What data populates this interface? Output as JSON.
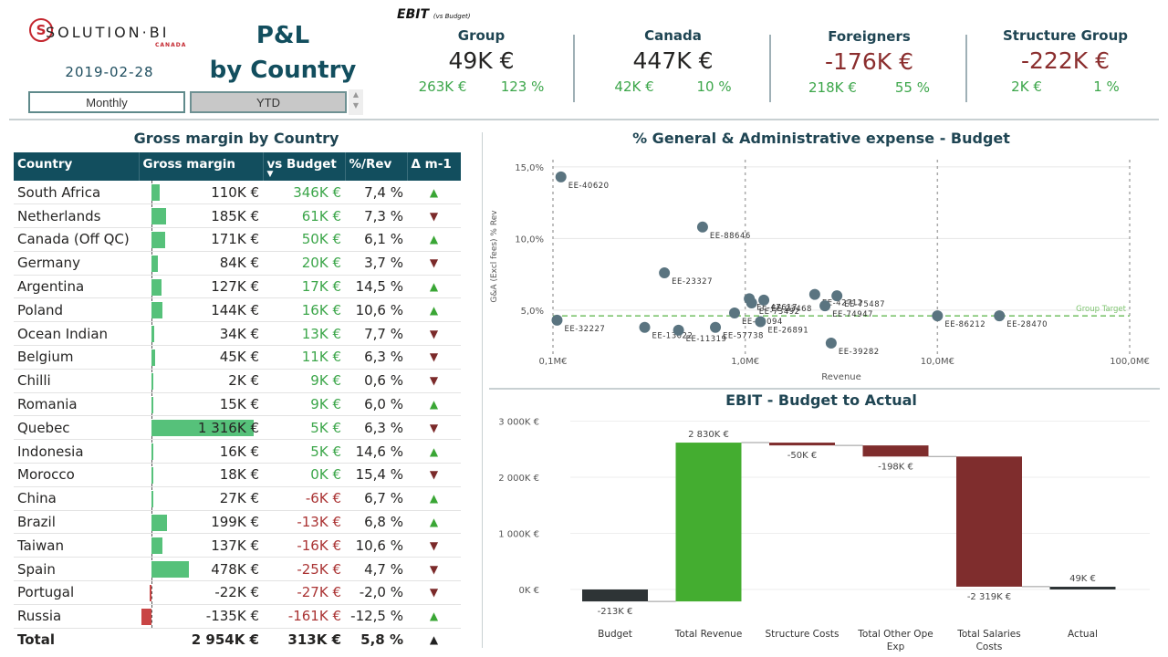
{
  "header": {
    "logo": {
      "brand": "SOLUTION·BI",
      "sub": "CANADA"
    },
    "date": "2019-02-28",
    "title_line1": "P&L",
    "title_line2": "by Country",
    "toggles": [
      {
        "label": "Monthly",
        "selected": false
      },
      {
        "label": "YTD",
        "selected": true
      }
    ]
  },
  "kpis": {
    "title": "EBIT",
    "subtitle": "(vs Budget)",
    "items": [
      {
        "name": "Group",
        "value": "49K €",
        "delta": "263K €",
        "pct": "123 %",
        "negative": false
      },
      {
        "name": "Canada",
        "value": "447K €",
        "delta": "42K €",
        "pct": "10 %",
        "negative": false
      },
      {
        "name": "Foreigners",
        "value": "-176K €",
        "delta": "218K €",
        "pct": "55 %",
        "negative": true
      },
      {
        "name": "Structure Group",
        "value": "-222K €",
        "delta": "2K €",
        "pct": "1 %",
        "negative": true
      }
    ]
  },
  "gross_margin": {
    "title": "Gross margin by Country",
    "columns": [
      "Country",
      "Gross margin",
      "vs Budget",
      "%/Rev",
      "Δ m-1"
    ],
    "sort_indicator": "▼",
    "colors": {
      "bar_pos": "#56c17a",
      "bar_neg": "#c94545",
      "pos": "#3ca64a",
      "neg": "#a33333"
    },
    "rows": [
      {
        "country": "South Africa",
        "gm": "110K €",
        "gm_value": 110,
        "vs_budget": "346K €",
        "vs_neg": false,
        "pct_rev": "7,4 %",
        "trend": "up"
      },
      {
        "country": "Netherlands",
        "gm": "185K €",
        "gm_value": 185,
        "vs_budget": "61K €",
        "vs_neg": false,
        "pct_rev": "7,3 %",
        "trend": "down"
      },
      {
        "country": "Canada (Off QC)",
        "gm": "171K €",
        "gm_value": 171,
        "vs_budget": "50K €",
        "vs_neg": false,
        "pct_rev": "6,1 %",
        "trend": "up"
      },
      {
        "country": "Germany",
        "gm": "84K €",
        "gm_value": 84,
        "vs_budget": "20K €",
        "vs_neg": false,
        "pct_rev": "3,7 %",
        "trend": "down"
      },
      {
        "country": "Argentina",
        "gm": "127K €",
        "gm_value": 127,
        "vs_budget": "17K €",
        "vs_neg": false,
        "pct_rev": "14,5 %",
        "trend": "up"
      },
      {
        "country": "Poland",
        "gm": "144K €",
        "gm_value": 144,
        "vs_budget": "16K €",
        "vs_neg": false,
        "pct_rev": "10,6 %",
        "trend": "up"
      },
      {
        "country": "Ocean Indian",
        "gm": "34K €",
        "gm_value": 34,
        "vs_budget": "13K €",
        "vs_neg": false,
        "pct_rev": "7,7 %",
        "trend": "down"
      },
      {
        "country": "Belgium",
        "gm": "45K €",
        "gm_value": 45,
        "vs_budget": "11K €",
        "vs_neg": false,
        "pct_rev": "6,3 %",
        "trend": "down"
      },
      {
        "country": "Chilli",
        "gm": "2K €",
        "gm_value": 2,
        "vs_budget": "9K €",
        "vs_neg": false,
        "pct_rev": "0,6 %",
        "trend": "down"
      },
      {
        "country": "Romania",
        "gm": "15K €",
        "gm_value": 15,
        "vs_budget": "9K €",
        "vs_neg": false,
        "pct_rev": "6,0 %",
        "trend": "up"
      },
      {
        "country": "Quebec",
        "gm": "1 316K €",
        "gm_value": 1316,
        "vs_budget": "5K €",
        "vs_neg": false,
        "pct_rev": "6,3 %",
        "trend": "down"
      },
      {
        "country": "Indonesia",
        "gm": "16K €",
        "gm_value": 16,
        "vs_budget": "5K €",
        "vs_neg": false,
        "pct_rev": "14,6 %",
        "trend": "up"
      },
      {
        "country": "Morocco",
        "gm": "18K €",
        "gm_value": 18,
        "vs_budget": "0K €",
        "vs_neg": false,
        "pct_rev": "15,4 %",
        "trend": "down"
      },
      {
        "country": "China",
        "gm": "27K €",
        "gm_value": 27,
        "vs_budget": "-6K €",
        "vs_neg": true,
        "pct_rev": "6,7 %",
        "trend": "up"
      },
      {
        "country": "Brazil",
        "gm": "199K €",
        "gm_value": 199,
        "vs_budget": "-13K €",
        "vs_neg": true,
        "pct_rev": "6,8 %",
        "trend": "up"
      },
      {
        "country": "Taiwan",
        "gm": "137K €",
        "gm_value": 137,
        "vs_budget": "-16K €",
        "vs_neg": true,
        "pct_rev": "10,6 %",
        "trend": "down"
      },
      {
        "country": "Spain",
        "gm": "478K €",
        "gm_value": 478,
        "vs_budget": "-25K €",
        "vs_neg": true,
        "pct_rev": "4,7 %",
        "trend": "down"
      },
      {
        "country": "Portugal",
        "gm": "-22K €",
        "gm_value": -22,
        "vs_budget": "-27K €",
        "vs_neg": true,
        "pct_rev": "-2,0 %",
        "trend": "down"
      },
      {
        "country": "Russia",
        "gm": "-135K €",
        "gm_value": -135,
        "vs_budget": "-161K €",
        "vs_neg": true,
        "pct_rev": "-12,5 %",
        "trend": "up"
      }
    ],
    "total": {
      "label": "Total",
      "gm": "2 954K €",
      "vs_budget": "313K €",
      "pct_rev": "5,8 %",
      "trend": "up"
    }
  },
  "chart_data": [
    {
      "type": "scatter",
      "title": "% General & Administrative expense - Budget",
      "xlabel": "Revenue",
      "ylabel": "G&A (Excl fees) % Rev",
      "xscale": "log",
      "xlim": [
        0.1,
        100
      ],
      "ylim": [
        2,
        15.5
      ],
      "xticks": [
        {
          "v": 0.1,
          "label": "0,1M€"
        },
        {
          "v": 1,
          "label": "1,0M€"
        },
        {
          "v": 10,
          "label": "10,0M€"
        },
        {
          "v": 100,
          "label": "100,0M€"
        }
      ],
      "yticks": [
        {
          "v": 5,
          "label": "5,0%"
        },
        {
          "v": 10,
          "label": "10,0%"
        },
        {
          "v": 15,
          "label": "15,0%"
        }
      ],
      "reference_line": {
        "label": "Group Target",
        "y": 4.6,
        "color": "#7dc46f"
      },
      "point_color": "#5a7480",
      "points": [
        {
          "id": "EE-40620",
          "x": 0.11,
          "y": 14.3
        },
        {
          "id": "EE-88646",
          "x": 0.6,
          "y": 10.8
        },
        {
          "id": "EE-23327",
          "x": 0.38,
          "y": 7.6
        },
        {
          "id": "EE-32227",
          "x": 0.105,
          "y": 4.3
        },
        {
          "id": "EE-13022",
          "x": 0.3,
          "y": 3.8
        },
        {
          "id": "EE-11319",
          "x": 0.45,
          "y": 3.6
        },
        {
          "id": "EE-57738",
          "x": 0.7,
          "y": 3.8
        },
        {
          "id": "EE-64094",
          "x": 0.88,
          "y": 4.8
        },
        {
          "id": "EE-47617",
          "x": 1.05,
          "y": 5.8
        },
        {
          "id": "EE-73492",
          "x": 1.08,
          "y": 5.5
        },
        {
          "id": "EE-23468",
          "x": 1.25,
          "y": 5.7
        },
        {
          "id": "EE-26891",
          "x": 1.2,
          "y": 4.2
        },
        {
          "id": "EE-42712",
          "x": 2.3,
          "y": 6.1
        },
        {
          "id": "EE-75487",
          "x": 3.0,
          "y": 6.0
        },
        {
          "id": "EE-74947",
          "x": 2.6,
          "y": 5.3
        },
        {
          "id": "EE-39282",
          "x": 2.8,
          "y": 2.7
        },
        {
          "id": "EE-86212",
          "x": 10,
          "y": 4.6
        },
        {
          "id": "EE-28470",
          "x": 21,
          "y": 4.6
        }
      ]
    },
    {
      "type": "bar",
      "subtype": "waterfall",
      "title": "EBIT - Budget to Actual",
      "categories": [
        "Budget",
        "Total Revenue",
        "Structure Costs",
        "Total Other Ope Exp",
        "Total Salaries Costs",
        "Actual"
      ],
      "values": [
        -213,
        2830,
        -50,
        -198,
        -2319,
        49
      ],
      "labels": [
        "-213K €",
        "2 830K €",
        "-50K €",
        "-198K €",
        "-2 319K €",
        "49K €"
      ],
      "kinds": [
        "total",
        "delta",
        "delta",
        "delta",
        "delta",
        "total"
      ],
      "colors": {
        "total": "#2e3436",
        "increase": "#44ad30",
        "decrease": "#7f2d2d"
      },
      "ylim": [
        -400,
        3200
      ],
      "yticks": [
        {
          "v": 0,
          "label": "0K €"
        },
        {
          "v": 1000,
          "label": "1 000K €"
        },
        {
          "v": 2000,
          "label": "2 000K €"
        },
        {
          "v": 3000,
          "label": "3 000K €"
        }
      ],
      "unit": "K €"
    }
  ]
}
